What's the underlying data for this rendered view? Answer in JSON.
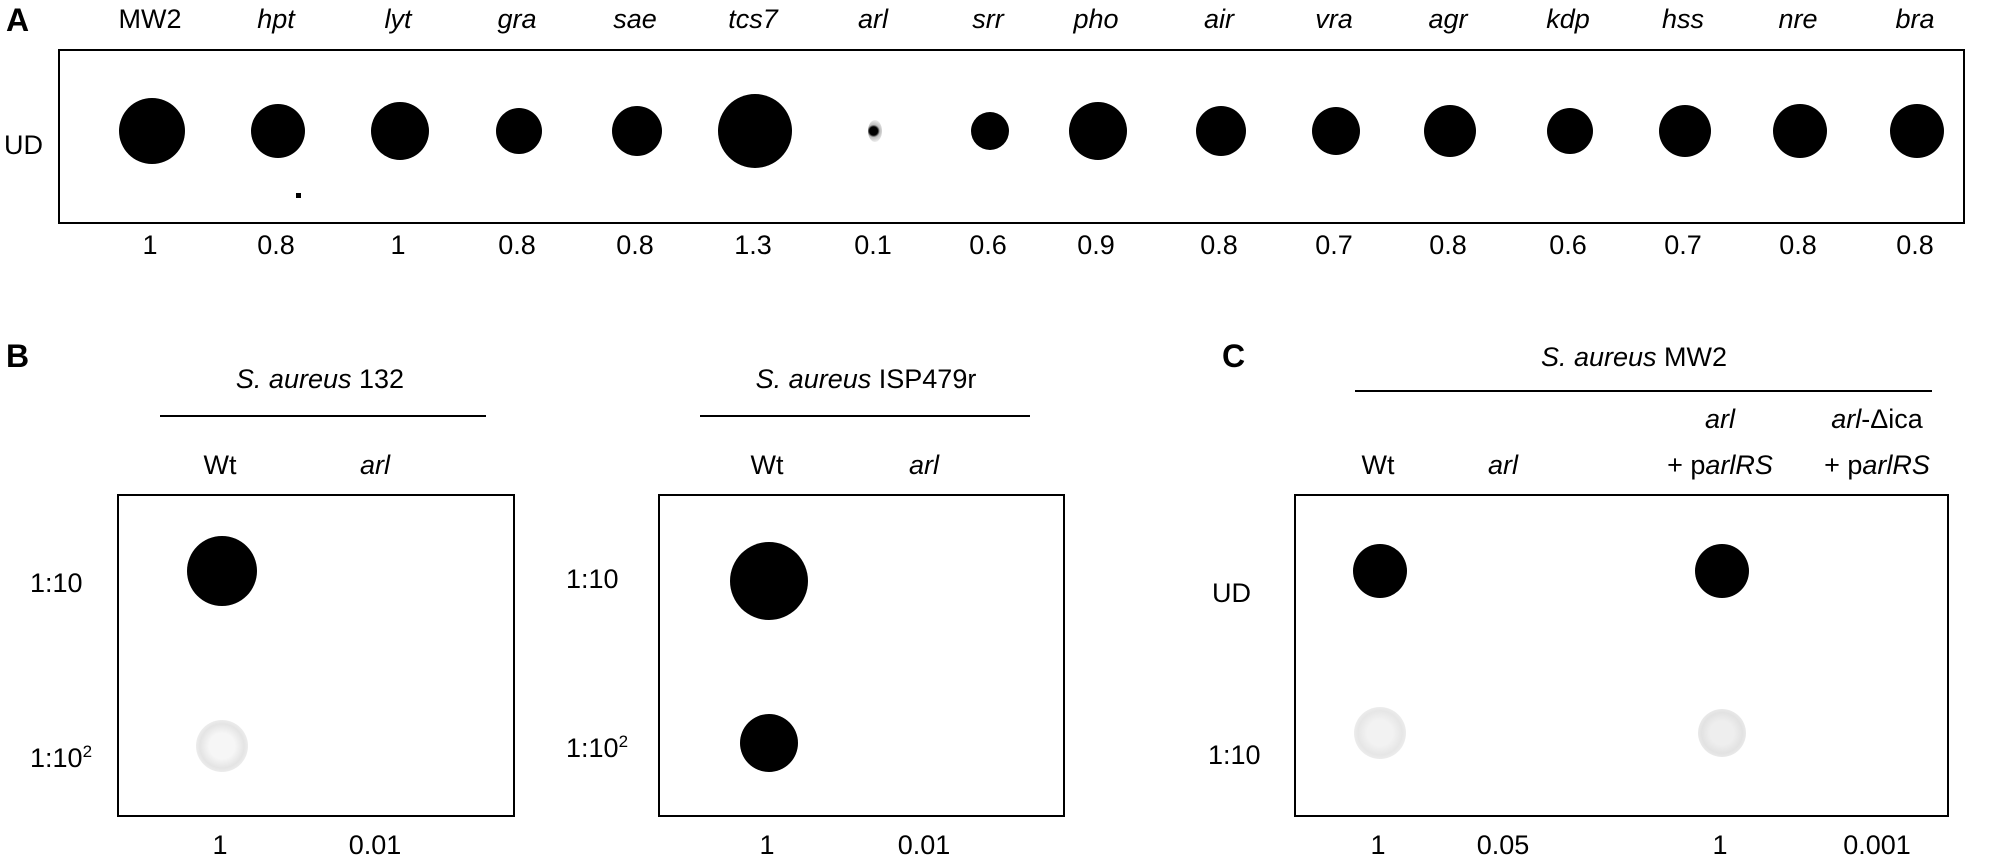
{
  "panels": {
    "A": {
      "letter": "A",
      "strains": [
        "MW2",
        "hpt",
        "lyt",
        "gra",
        "sae",
        "tcs7",
        "arl",
        "srr",
        "pho",
        "air",
        "vra",
        "agr",
        "kdp",
        "hss",
        "nre",
        "bra"
      ],
      "row_label": "UD",
      "quant": [
        "1",
        "0.8",
        "1",
        "0.8",
        "0.8",
        "1.3",
        "0.1",
        "0.6",
        "0.9",
        "0.8",
        "0.7",
        "0.8",
        "0.6",
        "0.7",
        "0.8",
        "0.8"
      ]
    },
    "B": {
      "letter": "B",
      "blot1": {
        "species": "S. aureus",
        "strain": "132",
        "col1": "Wt",
        "col2": "arl",
        "rows": [
          "1:10",
          "1:10",
          "2"
        ],
        "quant": [
          "1",
          "0.01"
        ]
      },
      "blot2": {
        "species": "S. aureus",
        "strain": "ISP479r",
        "col1": "Wt",
        "col2": "arl",
        "rows": [
          "1:10",
          "1:10",
          "2"
        ],
        "quant": [
          "1",
          "0.01"
        ]
      }
    },
    "C": {
      "letter": "C",
      "species": "S. aureus",
      "strain": "MW2",
      "col1": "Wt",
      "col2": "arl",
      "col3_line1": "arl",
      "col3_line2_prefix": "+ p",
      "col3_line2_gene": "arlRS",
      "col4_line1_gene": "arl",
      "col4_line1_rest": "-Δica",
      "col4_line2_prefix": "+ p",
      "col4_line2_gene": "arlRS",
      "rows": [
        "UD",
        "1:10"
      ],
      "quant": [
        "1",
        "0.05",
        "1",
        "0.001"
      ]
    }
  }
}
